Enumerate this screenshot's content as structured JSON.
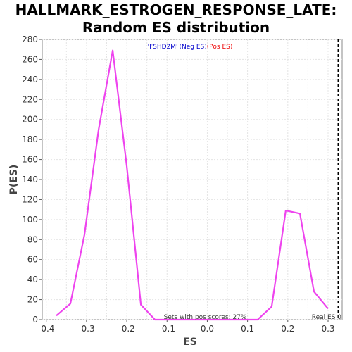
{
  "title_line1": "HALLMARK_ESTROGEN_RESPONSE_LATE:",
  "title_line2": "Random ES distribution",
  "legend": {
    "quote_open": "'",
    "gene_set": "FSHD2M",
    "quote_close": "'",
    "neg_label": "(Neg ES)",
    "pos_label": "(Pos ES)",
    "neg_color": "#0000cc",
    "pos_color": "#ee0000"
  },
  "annotations": {
    "pos_fraction": "Sets with pos scores: 27%",
    "real_es": "Real ES 0"
  },
  "chart_data": {
    "type": "line",
    "title": "HALLMARK_ESTROGEN_RESPONSE_LATE: Random ES distribution",
    "xlabel": "ES",
    "ylabel": "P(ES)",
    "xlim": [
      -0.41,
      0.335
    ],
    "ylim": [
      0,
      280
    ],
    "xticks": [
      -0.4,
      -0.3,
      -0.2,
      -0.1,
      0.0,
      0.1,
      0.2,
      0.3
    ],
    "xtick_labels": [
      "-0.4",
      "-0.3",
      "-0.2",
      "-0.1",
      "0.0",
      "0.1",
      "0.2",
      "0.3"
    ],
    "yticks": [
      0,
      20,
      40,
      60,
      80,
      100,
      120,
      140,
      160,
      180,
      200,
      220,
      240,
      260,
      280
    ],
    "grid": true,
    "line_color": "#ee44ee",
    "real_es_x": 0.325,
    "series": [
      {
        "x": [
          -0.375,
          -0.34,
          -0.305,
          -0.27,
          -0.235,
          -0.2,
          -0.165,
          -0.13,
          0.125,
          0.16,
          0.195,
          0.23,
          0.265,
          0.3
        ],
        "y": [
          4,
          16,
          85,
          190,
          269,
          153,
          15,
          0,
          0,
          13,
          109,
          106,
          28,
          11
        ]
      }
    ]
  }
}
